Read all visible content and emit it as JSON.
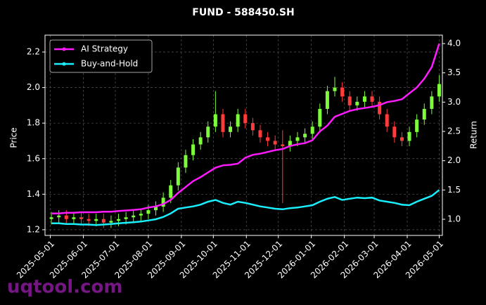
{
  "chart_data": {
    "type": "candlestick",
    "title": "FUND - 588450.SH",
    "ylabel": "Price",
    "y2label": "Return",
    "watermark": "uqtool.com",
    "grid": true,
    "legend": "upper left",
    "up_color": "#7cfc3a",
    "down_color": "#ff3b3b",
    "xlim": [
      "2025-04-26",
      "2026-05-04"
    ],
    "xticks": [
      "2025-05-01",
      "2025-06-01",
      "2025-07-01",
      "2025-08-01",
      "2025-09-01",
      "2025-10-01",
      "2025-11-01",
      "2025-12-01",
      "2026-01-01",
      "2026-02-01",
      "2026-03-01",
      "2026-04-01",
      "2026-05-01"
    ],
    "ylim": [
      1.168,
      2.295
    ],
    "yticks": [
      1.2,
      1.4,
      1.6,
      1.8,
      {
        "value": 2,
        "label": "2.0"
      },
      2.2
    ],
    "y2lim": [
      0.724,
      4.144
    ],
    "y2ticks": [
      {
        "value": 1,
        "label": "1.0"
      },
      1.5,
      {
        "value": 2,
        "label": "2.0"
      },
      2.5,
      {
        "value": 3,
        "label": "3.0"
      },
      3.5,
      {
        "value": 4,
        "label": "4.0"
      }
    ],
    "x": [
      "2025-05-02",
      "2025-05-09",
      "2025-05-16",
      "2025-05-23",
      "2025-05-30",
      "2025-06-06",
      "2025-06-13",
      "2025-06-20",
      "2025-06-27",
      "2025-07-04",
      "2025-07-11",
      "2025-07-18",
      "2025-07-25",
      "2025-08-01",
      "2025-08-08",
      "2025-08-15",
      "2025-08-22",
      "2025-08-29",
      "2025-09-05",
      "2025-09-12",
      "2025-09-19",
      "2025-09-26",
      "2025-10-03",
      "2025-10-10",
      "2025-10-17",
      "2025-10-24",
      "2025-10-31",
      "2025-11-07",
      "2025-11-14",
      "2025-11-21",
      "2025-11-28",
      "2025-12-05",
      "2025-12-12",
      "2025-12-19",
      "2025-12-26",
      "2026-01-02",
      "2026-01-09",
      "2026-01-16",
      "2026-01-23",
      "2026-01-30",
      "2026-02-06",
      "2026-02-13",
      "2026-02-20",
      "2026-02-27",
      "2026-03-06",
      "2026-03-13",
      "2026-03-20",
      "2026-03-27",
      "2026-04-03",
      "2026-04-10",
      "2026-04-17",
      "2026-04-24",
      "2026-05-01"
    ],
    "open": [
      1.26,
      1.27,
      1.28,
      1.26,
      1.27,
      1.26,
      1.25,
      1.26,
      1.24,
      1.25,
      1.26,
      1.27,
      1.28,
      1.29,
      1.31,
      1.33,
      1.38,
      1.45,
      1.55,
      1.62,
      1.68,
      1.72,
      1.78,
      1.85,
      1.75,
      1.78,
      1.85,
      1.8,
      1.76,
      1.72,
      1.7,
      1.68,
      1.67,
      1.7,
      1.72,
      1.74,
      1.78,
      1.88,
      1.98,
      2.0,
      1.95,
      1.9,
      1.92,
      1.95,
      1.92,
      1.85,
      1.78,
      1.72,
      1.7,
      1.75,
      1.82,
      1.88,
      1.95
    ],
    "high": [
      1.3,
      1.31,
      1.31,
      1.3,
      1.3,
      1.29,
      1.29,
      1.29,
      1.28,
      1.29,
      1.3,
      1.31,
      1.32,
      1.34,
      1.36,
      1.41,
      1.48,
      1.58,
      1.65,
      1.71,
      1.75,
      1.81,
      1.98,
      1.88,
      1.81,
      1.88,
      1.88,
      1.83,
      1.79,
      1.75,
      1.73,
      1.76,
      1.73,
      1.75,
      1.77,
      1.81,
      1.91,
      2.01,
      2.06,
      2.03,
      1.98,
      1.95,
      1.98,
      1.98,
      1.95,
      1.88,
      1.81,
      1.75,
      1.78,
      1.85,
      1.91,
      1.98,
      2.07
    ],
    "low": [
      1.23,
      1.24,
      1.23,
      1.23,
      1.23,
      1.22,
      1.22,
      1.21,
      1.21,
      1.22,
      1.23,
      1.24,
      1.25,
      1.26,
      1.28,
      1.3,
      1.35,
      1.42,
      1.52,
      1.59,
      1.65,
      1.69,
      1.75,
      1.72,
      1.72,
      1.75,
      1.77,
      1.73,
      1.69,
      1.67,
      1.65,
      1.35,
      1.64,
      1.67,
      1.69,
      1.71,
      1.75,
      1.85,
      1.95,
      1.92,
      1.87,
      1.87,
      1.89,
      1.89,
      1.82,
      1.75,
      1.69,
      1.67,
      1.67,
      1.72,
      1.79,
      1.85,
      1.92
    ],
    "close": [
      1.27,
      1.28,
      1.26,
      1.27,
      1.26,
      1.25,
      1.26,
      1.24,
      1.25,
      1.26,
      1.27,
      1.28,
      1.29,
      1.31,
      1.33,
      1.38,
      1.45,
      1.55,
      1.62,
      1.68,
      1.72,
      1.78,
      1.85,
      1.75,
      1.78,
      1.85,
      1.8,
      1.76,
      1.72,
      1.7,
      1.68,
      1.67,
      1.7,
      1.72,
      1.74,
      1.78,
      1.88,
      1.98,
      2.0,
      1.95,
      1.9,
      1.92,
      1.95,
      1.92,
      1.85,
      1.78,
      1.72,
      1.7,
      1.75,
      1.82,
      1.88,
      1.95,
      2.02
    ],
    "series": [
      {
        "name": "AI Strategy",
        "color": "#ff1aff",
        "axis": "y2",
        "values": [
          1.1,
          1.1,
          1.11,
          1.11,
          1.12,
          1.12,
          1.12,
          1.13,
          1.13,
          1.14,
          1.15,
          1.16,
          1.17,
          1.2,
          1.22,
          1.26,
          1.33,
          1.45,
          1.55,
          1.65,
          1.72,
          1.8,
          1.88,
          1.92,
          1.93,
          1.95,
          2.05,
          2.1,
          2.12,
          2.15,
          2.18,
          2.2,
          2.25,
          2.28,
          2.3,
          2.35,
          2.5,
          2.6,
          2.75,
          2.8,
          2.85,
          2.88,
          2.9,
          2.92,
          2.95,
          3.0,
          3.02,
          3.05,
          3.15,
          3.25,
          3.4,
          3.6,
          4.0
        ]
      },
      {
        "name": "Buy-and-Hold",
        "color": "#19f0ff",
        "axis": "y2",
        "values": [
          0.93,
          0.93,
          0.92,
          0.92,
          0.91,
          0.91,
          0.9,
          0.91,
          0.92,
          0.93,
          0.94,
          0.95,
          0.96,
          0.98,
          1.0,
          1.04,
          1.1,
          1.18,
          1.2,
          1.22,
          1.25,
          1.3,
          1.33,
          1.28,
          1.25,
          1.3,
          1.28,
          1.25,
          1.22,
          1.2,
          1.18,
          1.17,
          1.19,
          1.2,
          1.22,
          1.24,
          1.3,
          1.35,
          1.38,
          1.33,
          1.35,
          1.37,
          1.36,
          1.37,
          1.32,
          1.3,
          1.28,
          1.25,
          1.24,
          1.3,
          1.35,
          1.4,
          1.5
        ]
      }
    ]
  }
}
